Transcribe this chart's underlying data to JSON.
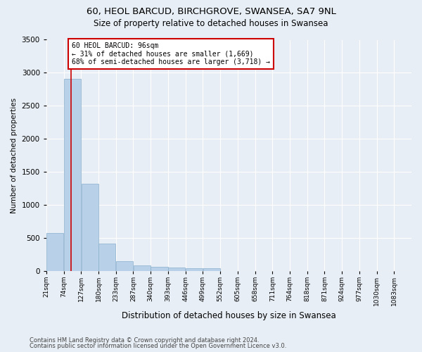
{
  "title": "60, HEOL BARCUD, BIRCHGROVE, SWANSEA, SA7 9NL",
  "subtitle": "Size of property relative to detached houses in Swansea",
  "xlabel": "Distribution of detached houses by size in Swansea",
  "ylabel": "Number of detached properties",
  "bar_color": "#b8d0e8",
  "bar_edge_color": "#8ab0cc",
  "bin_labels": [
    "21sqm",
    "74sqm",
    "127sqm",
    "180sqm",
    "233sqm",
    "287sqm",
    "340sqm",
    "393sqm",
    "446sqm",
    "499sqm",
    "552sqm",
    "605sqm",
    "658sqm",
    "711sqm",
    "764sqm",
    "818sqm",
    "871sqm",
    "924sqm",
    "977sqm",
    "1030sqm",
    "1083sqm"
  ],
  "bar_heights": [
    570,
    2910,
    1320,
    410,
    150,
    80,
    55,
    45,
    40,
    35,
    0,
    0,
    0,
    0,
    0,
    0,
    0,
    0,
    0,
    0,
    0
  ],
  "property_line_color": "#cc0000",
  "annotation_text": "60 HEOL BARCUD: 96sqm\n← 31% of detached houses are smaller (1,669)\n68% of semi-detached houses are larger (3,718) →",
  "annotation_box_color": "#ffffff",
  "annotation_box_edge_color": "#cc0000",
  "ylim": [
    0,
    3500
  ],
  "yticks": [
    0,
    500,
    1000,
    1500,
    2000,
    2500,
    3000,
    3500
  ],
  "footnote1": "Contains HM Land Registry data © Crown copyright and database right 2024.",
  "footnote2": "Contains public sector information licensed under the Open Government Licence v3.0.",
  "bg_color": "#e8eef5",
  "grid_color": "#ffffff",
  "bin_width": 53
}
